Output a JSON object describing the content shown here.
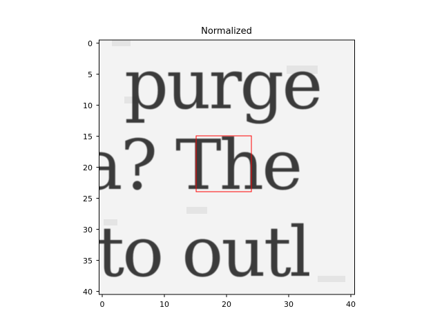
{
  "figure": {
    "title": "Normalized",
    "x_ticks": [
      "0",
      "5",
      "10",
      "15",
      "20",
      "25",
      "30",
      "35",
      "40"
    ],
    "y_ticks": [
      "0",
      "5",
      "10",
      "15",
      "20",
      "25",
      "30",
      "35",
      "40"
    ],
    "image_shape": [
      41,
      41
    ],
    "text_lines": [
      "purge",
      "a? The",
      "to outl"
    ],
    "roi": {
      "x0": 15,
      "y0": 15,
      "x1": 24,
      "y1": 24,
      "color": "#ff0000"
    },
    "colormap": "gray"
  }
}
